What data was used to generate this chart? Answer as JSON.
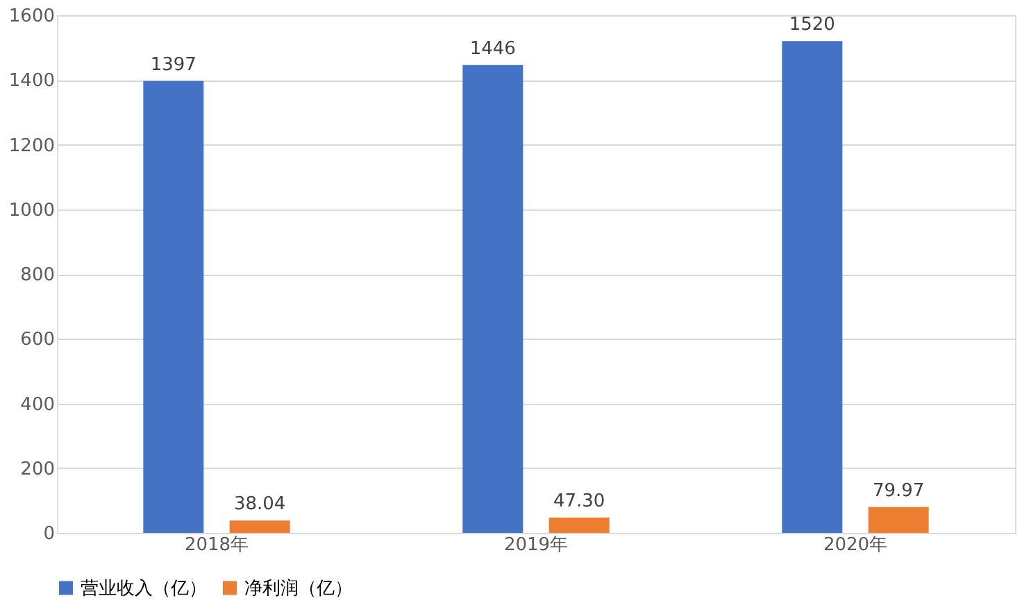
{
  "chart_data": {
    "type": "bar",
    "categories": [
      "2018年",
      "2019年",
      "2020年"
    ],
    "series": [
      {
        "name": "营业收入（亿）",
        "color": "#4472c4",
        "values": [
          1397,
          1446,
          1520
        ],
        "value_labels": [
          "1397",
          "1446",
          "1520"
        ]
      },
      {
        "name": "净利润（亿）",
        "color": "#ed7d31",
        "values": [
          38.04,
          47.3,
          79.97
        ],
        "value_labels": [
          "38.04",
          "47.30",
          "79.97"
        ]
      }
    ],
    "ylim": [
      0,
      1600
    ],
    "yticks": [
      0,
      200,
      400,
      600,
      800,
      1000,
      1200,
      1400,
      1600
    ],
    "grid": "y",
    "legend": "bottom"
  }
}
